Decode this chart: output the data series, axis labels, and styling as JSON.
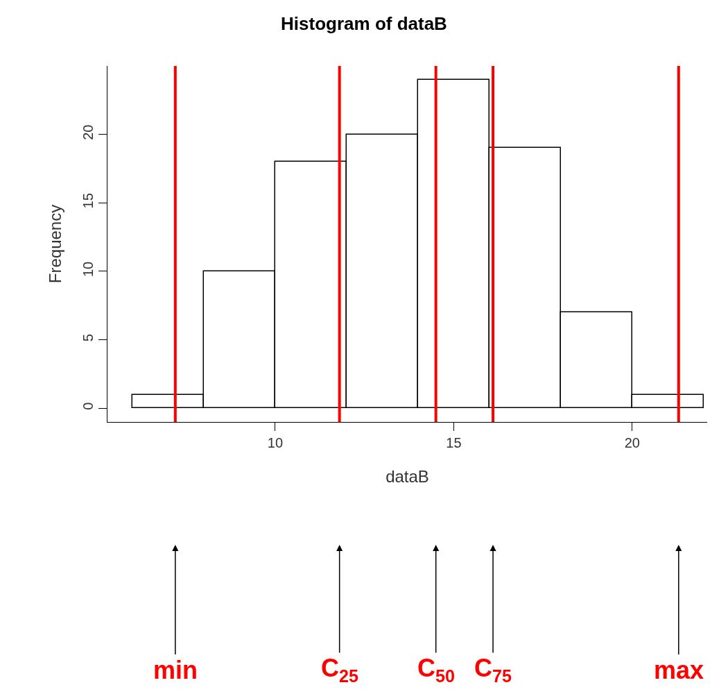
{
  "chart_data": {
    "type": "histogram",
    "title": "Histogram of dataB",
    "xlabel": "dataB",
    "ylabel": "Frequency",
    "bins": [
      6,
      8,
      10,
      12,
      14,
      16,
      18,
      20,
      22
    ],
    "values": [
      1,
      10,
      18,
      20,
      24,
      19,
      7,
      1
    ],
    "color": "#ffffff",
    "xlim": [
      5.3,
      22.1
    ],
    "ylim": [
      -1,
      25
    ],
    "xticks": [
      10,
      15,
      20
    ],
    "yticks": [
      0,
      5,
      10,
      15,
      20
    ],
    "ref_lines": [
      {
        "axis": "x",
        "value": 7.2,
        "label": "min",
        "color": "#ff0000"
      },
      {
        "axis": "x",
        "value": 11.8,
        "label": "C$_{25}$",
        "color": "#ff0000"
      },
      {
        "axis": "x",
        "value": 14.5,
        "label": "C$_{50}$",
        "color": "#ff0000"
      },
      {
        "axis": "x",
        "value": 16.1,
        "label": "C$_{75}$",
        "color": "#ff0000"
      },
      {
        "axis": "x",
        "value": 21.3,
        "label": "max",
        "color": "#ff0000"
      }
    ]
  }
}
